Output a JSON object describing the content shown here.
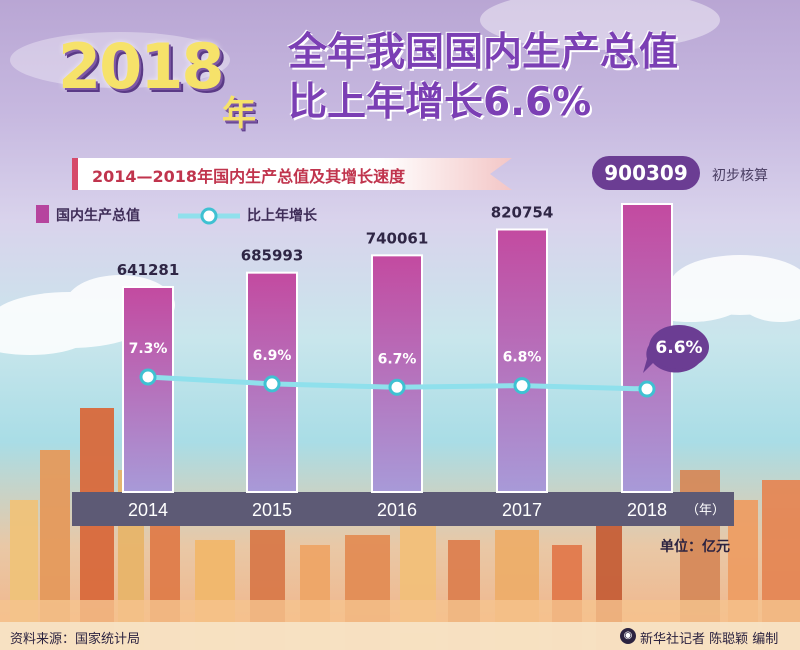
{
  "header": {
    "year": "2018",
    "year_suffix": "年",
    "title_line1": "全年我国国内生产总值",
    "title_line2": "比上年增长6.6%"
  },
  "subtitle": "2014—2018年国内生产总值及其增长速度",
  "highlight": {
    "value": "900309",
    "note": "初步核算"
  },
  "legend": {
    "bar_label": "国内生产总值",
    "line_label": "比上年增长"
  },
  "unit": "单位：亿元",
  "year_unit": "（年）",
  "footer": {
    "source": "资料来源：国家统计局",
    "credit": "新华社记者 陈聪颖 编制"
  },
  "colors": {
    "bar_top": "#c34aa0",
    "bar_bottom": "#a89ad8",
    "line": "#8fe0ec",
    "axis_band": "#5d5a75",
    "rate_bubble": "#6b3d93"
  },
  "chart_data": {
    "type": "bar",
    "categories": [
      "2014",
      "2015",
      "2016",
      "2017",
      "2018"
    ],
    "series": [
      {
        "name": "国内生产总值",
        "type": "bar",
        "values": [
          641281,
          685993,
          740061,
          820754,
          900309
        ],
        "labels": [
          "641281",
          "685993",
          "740061",
          "820754",
          "900309"
        ]
      },
      {
        "name": "比上年增长",
        "type": "line",
        "values": [
          7.3,
          6.9,
          6.7,
          6.8,
          6.6
        ],
        "labels": [
          "7.3%",
          "6.9%",
          "6.7%",
          "6.8%",
          "6.6%"
        ]
      }
    ],
    "title": "2014—2018年国内生产总值及其增长速度",
    "xlabel": "（年）",
    "ylabel": "单位：亿元"
  }
}
